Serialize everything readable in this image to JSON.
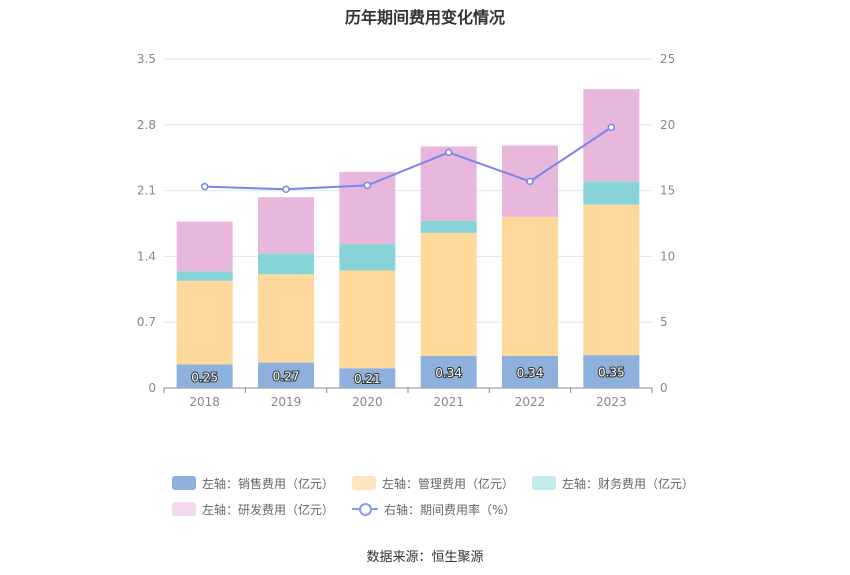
{
  "chart_data": {
    "type": "bar",
    "title": "历年期间费用变化情况",
    "categories": [
      "2018",
      "2019",
      "2020",
      "2021",
      "2022",
      "2023"
    ],
    "left_axis": {
      "ticks": [
        "0",
        "0.7",
        "1.4",
        "2.1",
        "2.8",
        "3.5"
      ],
      "ylim": [
        0,
        3.5
      ]
    },
    "right_axis": {
      "ticks": [
        "0",
        "5",
        "10",
        "15",
        "20",
        "25"
      ],
      "ylim": [
        0,
        25
      ]
    },
    "series": [
      {
        "name": "左轴：销售费用（亿元）",
        "type": "bar",
        "axis": "left",
        "color": "#8eb0dc",
        "values": [
          0.25,
          0.27,
          0.21,
          0.34,
          0.34,
          0.35
        ],
        "labels": [
          "0.25",
          "0.27",
          "0.21",
          "0.34",
          "0.34",
          "0.35"
        ]
      },
      {
        "name": "左轴：管理费用（亿元）",
        "type": "bar",
        "axis": "left",
        "color": "#ffd89c",
        "values": [
          0.89,
          0.94,
          1.04,
          1.31,
          1.48,
          1.6
        ]
      },
      {
        "name": "左轴：财务费用（亿元）",
        "type": "bar",
        "axis": "left",
        "color": "#86d4d8",
        "values": [
          0.1,
          0.22,
          0.28,
          0.13,
          0.0,
          0.25
        ]
      },
      {
        "name": "左轴：研发费用（亿元）",
        "type": "bar",
        "axis": "left",
        "color": "#e8b8dc",
        "values": [
          0.53,
          0.6,
          0.77,
          0.79,
          0.76,
          0.98
        ]
      },
      {
        "name": "右轴：期间费用率（%）",
        "type": "line",
        "axis": "right",
        "color": "#7b84ec",
        "values": [
          15.3,
          15.1,
          15.4,
          17.9,
          15.7,
          19.8
        ]
      }
    ],
    "legend_colors": [
      "#8eb0dc",
      "#fde5bf",
      "#c2eaec",
      "#f5d9ee"
    ],
    "grid": true,
    "legend_position": "bottom"
  },
  "source": "数据来源：恒生聚源"
}
